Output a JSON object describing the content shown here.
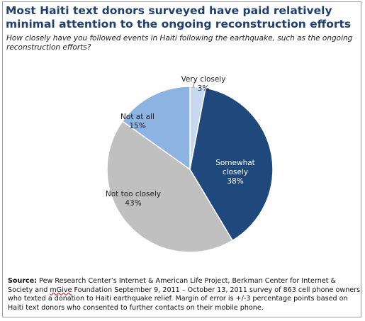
{
  "title": "Most Haiti text donors surveyed have paid relatively minimal attention to the ongoing reconstruction efforts",
  "subtitle": "How closely have you followed events in Haiti following the earthquake, such as the ongoing reconstruction efforts?",
  "chart_data": {
    "type": "pie",
    "title": "Most Haiti text donors surveyed have paid relatively minimal attention to the ongoing reconstruction efforts",
    "subtitle": "How closely have you followed events in Haiti following the earthquake, such as the ongoing reconstruction efforts?",
    "slices": [
      {
        "label": "Very closely",
        "value": 3,
        "value_label": "3%",
        "color": "#c6d9f1"
      },
      {
        "label": "Somewhat closely",
        "value": 38,
        "value_label": "38%",
        "color": "#1f497d"
      },
      {
        "label": "Not too closely",
        "value": 43,
        "value_label": "43%",
        "color": "#c0c0c0"
      },
      {
        "label": "Not at all",
        "value": 15,
        "value_label": "15%",
        "color": "#8db3e2"
      }
    ],
    "start": "top, clockwise",
    "edge_color": "#ffffff"
  },
  "note": {
    "source_label": "Source:",
    "text_before": " Pew Research Center’s Internet & American Life Project, Berkman Center for Internet & Society and ",
    "mgive": "mGive",
    "text_after": " Foundation September 9, 2011 – October 13, 2011 survey of 863 cell phone owners who texted a donation to Haiti earthquake relief. Margin of error is +/-3 percentage points based on Haiti text donors who consented to further contacts on their mobile phone."
  }
}
